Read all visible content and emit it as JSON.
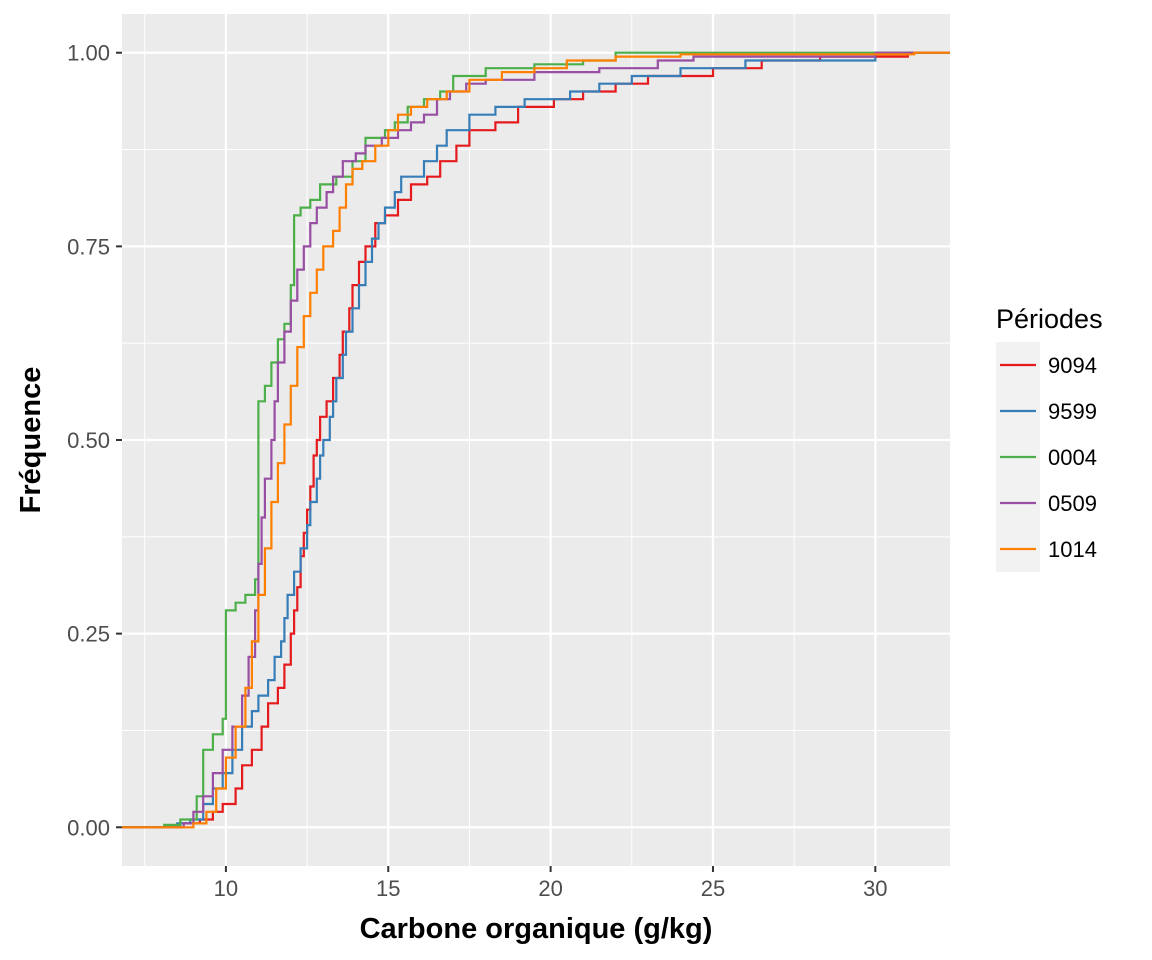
{
  "chart_data": {
    "type": "line",
    "subtype": "ecdf-step",
    "xlabel": "Carbone organique (g/kg)",
    "ylabel": "Fréquence",
    "xlim": [
      6.8,
      32.3
    ],
    "ylim": [
      -0.05,
      1.05
    ],
    "x_ticks": [
      10,
      15,
      20,
      25,
      30
    ],
    "x_tick_labels": [
      "10",
      "15",
      "20",
      "25",
      "30"
    ],
    "y_ticks": [
      0,
      0.25,
      0.5,
      0.75,
      1
    ],
    "y_tick_labels": [
      "0.00",
      "0.25",
      "0.50",
      "0.75",
      "1.00"
    ],
    "grid": true,
    "legend": {
      "title": "Périodes",
      "position": "right"
    },
    "series": [
      {
        "name": "9094",
        "color": "#e41a1c",
        "points": [
          [
            6.8,
            0
          ],
          [
            8.0,
            0
          ],
          [
            8.6,
            0.005
          ],
          [
            9.2,
            0.01
          ],
          [
            9.6,
            0.02
          ],
          [
            9.9,
            0.03
          ],
          [
            10.3,
            0.05
          ],
          [
            10.5,
            0.08
          ],
          [
            10.8,
            0.1
          ],
          [
            11.1,
            0.13
          ],
          [
            11.3,
            0.16
          ],
          [
            11.6,
            0.18
          ],
          [
            11.8,
            0.21
          ],
          [
            12.0,
            0.25
          ],
          [
            12.1,
            0.28
          ],
          [
            12.2,
            0.31
          ],
          [
            12.3,
            0.35
          ],
          [
            12.4,
            0.38
          ],
          [
            12.5,
            0.41
          ],
          [
            12.6,
            0.44
          ],
          [
            12.7,
            0.48
          ],
          [
            12.8,
            0.5
          ],
          [
            12.9,
            0.53
          ],
          [
            13.1,
            0.55
          ],
          [
            13.3,
            0.58
          ],
          [
            13.5,
            0.61
          ],
          [
            13.6,
            0.64
          ],
          [
            13.8,
            0.67
          ],
          [
            13.9,
            0.7
          ],
          [
            14.1,
            0.73
          ],
          [
            14.3,
            0.75
          ],
          [
            14.6,
            0.78
          ],
          [
            14.9,
            0.79
          ],
          [
            15.3,
            0.81
          ],
          [
            15.7,
            0.83
          ],
          [
            16.2,
            0.84
          ],
          [
            16.6,
            0.86
          ],
          [
            17.1,
            0.88
          ],
          [
            17.5,
            0.9
          ],
          [
            18.3,
            0.91
          ],
          [
            19.0,
            0.93
          ],
          [
            20.1,
            0.94
          ],
          [
            21.0,
            0.95
          ],
          [
            22.0,
            0.96
          ],
          [
            23.0,
            0.97
          ],
          [
            25.0,
            0.98
          ],
          [
            26.5,
            0.99
          ],
          [
            28.3,
            0.995
          ],
          [
            31.0,
            1.0
          ],
          [
            32.3,
            1.0
          ]
        ]
      },
      {
        "name": "9599",
        "color": "#377eb8",
        "points": [
          [
            6.8,
            0
          ],
          [
            7.8,
            0
          ],
          [
            8.5,
            0.005
          ],
          [
            8.9,
            0.01
          ],
          [
            9.3,
            0.03
          ],
          [
            9.6,
            0.05
          ],
          [
            9.9,
            0.07
          ],
          [
            10.2,
            0.1
          ],
          [
            10.5,
            0.13
          ],
          [
            10.8,
            0.15
          ],
          [
            11.0,
            0.17
          ],
          [
            11.3,
            0.19
          ],
          [
            11.5,
            0.22
          ],
          [
            11.7,
            0.24
          ],
          [
            11.8,
            0.27
          ],
          [
            11.9,
            0.3
          ],
          [
            12.1,
            0.33
          ],
          [
            12.3,
            0.36
          ],
          [
            12.5,
            0.39
          ],
          [
            12.6,
            0.42
          ],
          [
            12.8,
            0.45
          ],
          [
            12.9,
            0.48
          ],
          [
            13.0,
            0.5
          ],
          [
            13.2,
            0.53
          ],
          [
            13.3,
            0.55
          ],
          [
            13.4,
            0.58
          ],
          [
            13.6,
            0.61
          ],
          [
            13.7,
            0.64
          ],
          [
            13.9,
            0.67
          ],
          [
            14.1,
            0.7
          ],
          [
            14.3,
            0.73
          ],
          [
            14.5,
            0.76
          ],
          [
            14.7,
            0.78
          ],
          [
            14.9,
            0.8
          ],
          [
            15.2,
            0.82
          ],
          [
            15.4,
            0.84
          ],
          [
            16.1,
            0.86
          ],
          [
            16.5,
            0.88
          ],
          [
            16.8,
            0.9
          ],
          [
            17.5,
            0.92
          ],
          [
            18.3,
            0.93
          ],
          [
            19.2,
            0.94
          ],
          [
            20.6,
            0.95
          ],
          [
            21.5,
            0.96
          ],
          [
            22.5,
            0.97
          ],
          [
            24.0,
            0.98
          ],
          [
            26.0,
            0.99
          ],
          [
            30.0,
            1.0
          ],
          [
            32.3,
            1.0
          ]
        ]
      },
      {
        "name": "0004",
        "color": "#4daf4a",
        "points": [
          [
            6.8,
            0
          ],
          [
            8.1,
            0.003
          ],
          [
            8.6,
            0.01
          ],
          [
            9.1,
            0.04
          ],
          [
            9.3,
            0.1
          ],
          [
            9.6,
            0.12
          ],
          [
            9.9,
            0.14
          ],
          [
            10.0,
            0.28
          ],
          [
            10.3,
            0.29
          ],
          [
            10.6,
            0.3
          ],
          [
            10.9,
            0.32
          ],
          [
            11.0,
            0.55
          ],
          [
            11.2,
            0.57
          ],
          [
            11.4,
            0.6
          ],
          [
            11.6,
            0.63
          ],
          [
            11.8,
            0.65
          ],
          [
            12.0,
            0.7
          ],
          [
            12.1,
            0.79
          ],
          [
            12.3,
            0.8
          ],
          [
            12.6,
            0.81
          ],
          [
            12.9,
            0.83
          ],
          [
            13.4,
            0.84
          ],
          [
            13.9,
            0.86
          ],
          [
            14.3,
            0.89
          ],
          [
            14.9,
            0.9
          ],
          [
            15.2,
            0.91
          ],
          [
            15.6,
            0.93
          ],
          [
            16.1,
            0.94
          ],
          [
            16.6,
            0.95
          ],
          [
            17.0,
            0.97
          ],
          [
            18.0,
            0.98
          ],
          [
            19.5,
            0.985
          ],
          [
            21.0,
            0.99
          ],
          [
            22.0,
            1.0
          ],
          [
            32.3,
            1.0
          ]
        ]
      },
      {
        "name": "0509",
        "color": "#984ea3",
        "points": [
          [
            6.8,
            0
          ],
          [
            7.5,
            0
          ],
          [
            8.7,
            0.005
          ],
          [
            9.0,
            0.02
          ],
          [
            9.3,
            0.04
          ],
          [
            9.6,
            0.07
          ],
          [
            9.9,
            0.1
          ],
          [
            10.2,
            0.13
          ],
          [
            10.5,
            0.17
          ],
          [
            10.7,
            0.22
          ],
          [
            10.9,
            0.28
          ],
          [
            11.0,
            0.34
          ],
          [
            11.1,
            0.4
          ],
          [
            11.2,
            0.45
          ],
          [
            11.4,
            0.5
          ],
          [
            11.5,
            0.55
          ],
          [
            11.6,
            0.6
          ],
          [
            11.8,
            0.64
          ],
          [
            12.0,
            0.68
          ],
          [
            12.2,
            0.72
          ],
          [
            12.4,
            0.75
          ],
          [
            12.6,
            0.78
          ],
          [
            12.8,
            0.8
          ],
          [
            13.1,
            0.82
          ],
          [
            13.3,
            0.84
          ],
          [
            13.6,
            0.86
          ],
          [
            14.0,
            0.87
          ],
          [
            14.3,
            0.88
          ],
          [
            14.8,
            0.89
          ],
          [
            15.3,
            0.9
          ],
          [
            15.7,
            0.91
          ],
          [
            16.1,
            0.92
          ],
          [
            16.5,
            0.94
          ],
          [
            16.9,
            0.95
          ],
          [
            17.4,
            0.96
          ],
          [
            18.0,
            0.965
          ],
          [
            19.5,
            0.975
          ],
          [
            21.5,
            0.98
          ],
          [
            23.3,
            0.99
          ],
          [
            24.4,
            0.995
          ],
          [
            30.0,
            1.0
          ],
          [
            32.3,
            1.0
          ]
        ]
      },
      {
        "name": "1014",
        "color": "#ff7f00",
        "points": [
          [
            6.8,
            0
          ],
          [
            8.5,
            0
          ],
          [
            9.0,
            0.005
          ],
          [
            9.4,
            0.02
          ],
          [
            9.7,
            0.05
          ],
          [
            10.0,
            0.09
          ],
          [
            10.3,
            0.13
          ],
          [
            10.6,
            0.18
          ],
          [
            10.8,
            0.24
          ],
          [
            11.0,
            0.3
          ],
          [
            11.2,
            0.36
          ],
          [
            11.4,
            0.42
          ],
          [
            11.6,
            0.47
          ],
          [
            11.8,
            0.52
          ],
          [
            12.0,
            0.57
          ],
          [
            12.2,
            0.62
          ],
          [
            12.4,
            0.66
          ],
          [
            12.6,
            0.69
          ],
          [
            12.8,
            0.72
          ],
          [
            13.0,
            0.75
          ],
          [
            13.3,
            0.77
          ],
          [
            13.5,
            0.8
          ],
          [
            13.7,
            0.83
          ],
          [
            13.9,
            0.85
          ],
          [
            14.2,
            0.86
          ],
          [
            14.6,
            0.88
          ],
          [
            15.0,
            0.9
          ],
          [
            15.3,
            0.92
          ],
          [
            15.7,
            0.93
          ],
          [
            16.2,
            0.94
          ],
          [
            16.8,
            0.95
          ],
          [
            17.5,
            0.965
          ],
          [
            18.5,
            0.975
          ],
          [
            19.5,
            0.98
          ],
          [
            20.5,
            0.99
          ],
          [
            22.0,
            0.995
          ],
          [
            24.0,
            0.998
          ],
          [
            31.2,
            1.0
          ],
          [
            32.3,
            1.0
          ]
        ]
      }
    ]
  }
}
